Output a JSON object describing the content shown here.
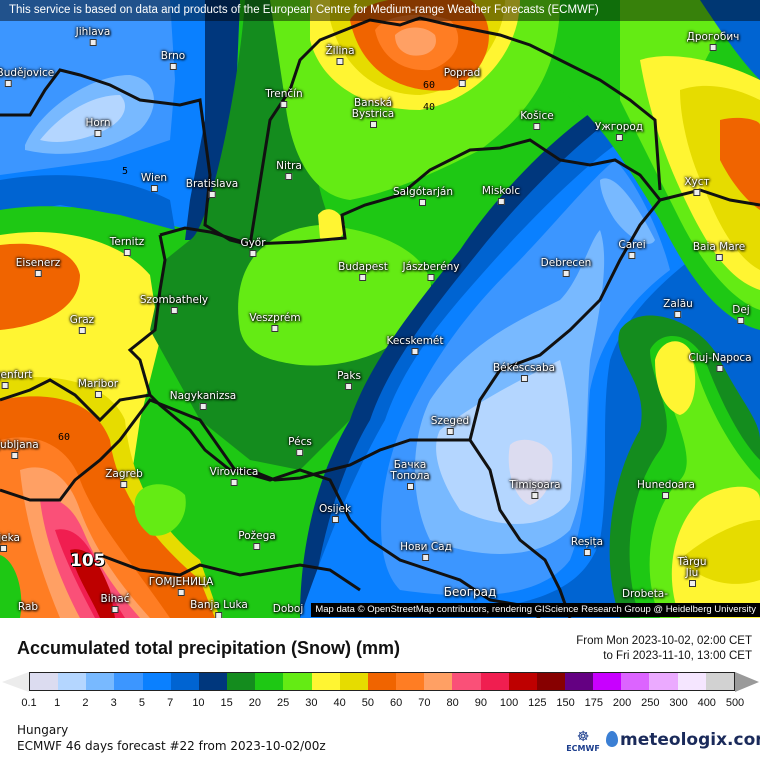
{
  "banner": "This service is based on data and products of the European Centre for Medium-range Weather Forecasts (ECMWF)",
  "attribution": "Map data © OpenStreetMap contributors, rendering GIScience Research Group @ Heidelberg University",
  "map": {
    "cities": [
      "Jihlava",
      "Brno",
      "České Budějovice",
      "Horn",
      "Wien",
      "Bratislava",
      "Žilina",
      "Poprad",
      "Banská Bystrica",
      "Trenčín",
      "Nitra",
      "Košice",
      "Ужгород",
      "Дрогобич",
      "Хуст",
      "Salgótarján",
      "Miskolc",
      "Győr",
      "Budapest",
      "Jászberény",
      "Debrecen",
      "Carei",
      "Baia Mare",
      "Ternitz",
      "Eisenerz",
      "Szombathely",
      "Veszprém",
      "Graz",
      "Zalău",
      "Dej",
      "Kecskemét",
      "Cluj-Napoca",
      "Klagenfurt",
      "Maribor",
      "Nagykanizsa",
      "Paks",
      "Békéscsaba",
      "Ljubljana",
      "Szeged",
      "Pécs",
      "Zagreb",
      "Virovitica",
      "Бачка Топола",
      "Timișoara",
      "Hunedoara",
      "Osijek",
      "Rijeka",
      "Požega",
      "Reșița",
      "Нови Сад",
      "Târgu Jiu",
      "ГОМЈЕНИЦА",
      "Bihać",
      "Banja Luka",
      "Rab",
      "Doboj",
      "Београд",
      "Drobeta-"
    ],
    "contour_labels": [
      "5",
      "60",
      "40",
      "60"
    ],
    "max_value": "105"
  },
  "header": {
    "title": "Accumulated total precipitation (Snow) (mm)",
    "from": "From Mon 2023-10-02, 02:00 CET",
    "to": "to Fri 2023-11-10, 13:00 CET"
  },
  "legend": {
    "ticks": [
      "0.1",
      "1",
      "2",
      "3",
      "5",
      "7",
      "10",
      "15",
      "20",
      "25",
      "30",
      "40",
      "50",
      "60",
      "70",
      "80",
      "90",
      "100",
      "125",
      "150",
      "175",
      "200",
      "250",
      "300",
      "400",
      "500"
    ],
    "colors": [
      "#dcdcf0",
      "#b4d6ff",
      "#78b9ff",
      "#3c96ff",
      "#0a80ff",
      "#0064d2",
      "#00377d",
      "#148c1e",
      "#1ec814",
      "#64eb14",
      "#fff532",
      "#e6dc00",
      "#f06400",
      "#ff7d23",
      "#ffa064",
      "#fa5078",
      "#f01e50",
      "#be0000",
      "#870000",
      "#640082",
      "#c800ff",
      "#dc64ff",
      "#ebaaff",
      "#f5e6ff",
      "#d2d2d2"
    ],
    "below_color": "#ececec",
    "above_color": "#9a9a9a"
  },
  "footer": {
    "region": "Hungary",
    "model": "ECMWF 46 days forecast #22 from  2023-10-02/00z",
    "ecmwf_logo": "ECMWF",
    "brand": "meteologix.com"
  }
}
